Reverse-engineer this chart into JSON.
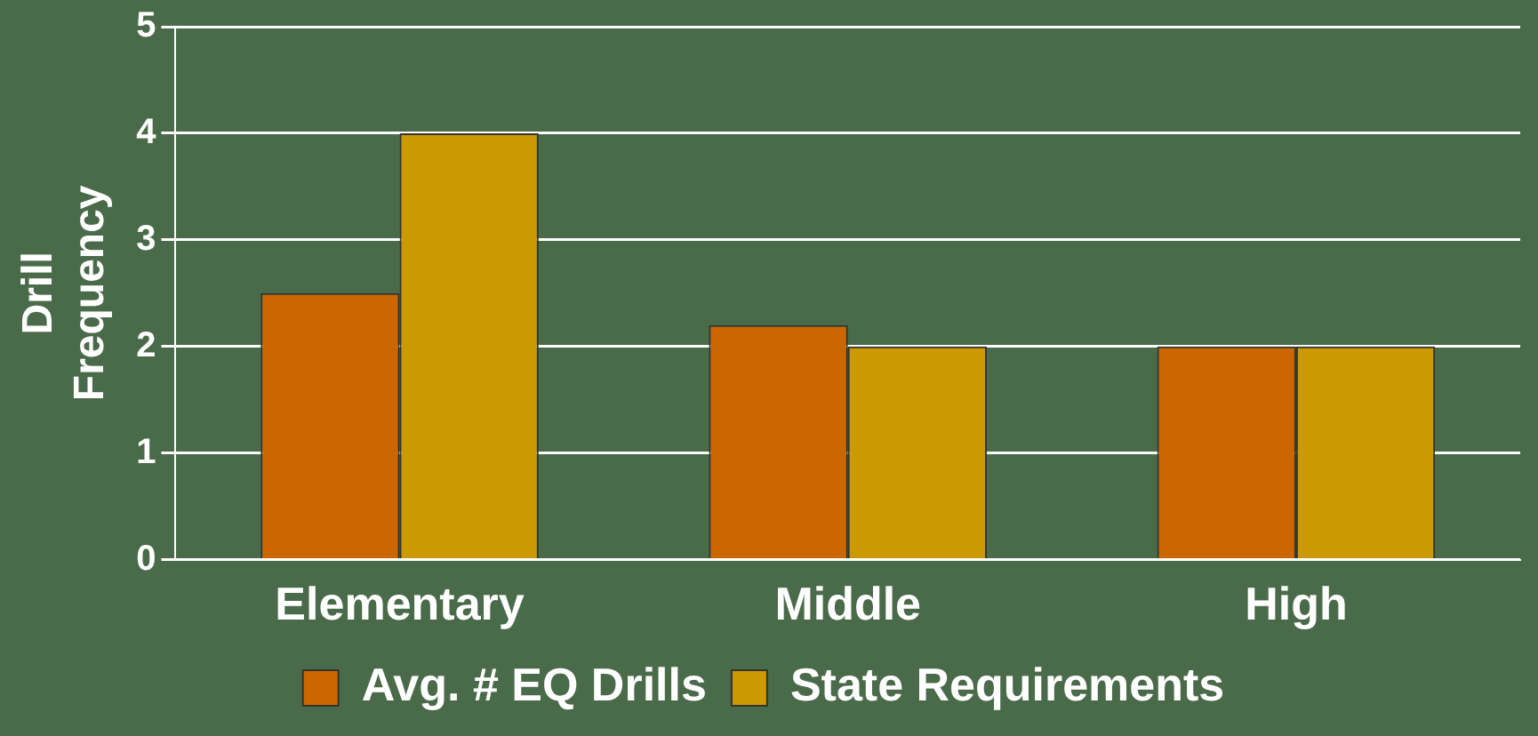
{
  "chart_data": {
    "type": "bar",
    "ylabel": "Drill\nFrequency",
    "categories": [
      "Elementary",
      "Middle",
      "High"
    ],
    "series": [
      {
        "name": "Avg. # EQ Drills",
        "color": "#cc6600",
        "values": [
          2.5,
          2.2,
          2
        ]
      },
      {
        "name": "State Requirements",
        "color": "#cc9900",
        "values": [
          4,
          2,
          2
        ]
      }
    ],
    "ylim": [
      0,
      5
    ],
    "yticks": [
      0,
      1,
      2,
      3,
      4,
      5
    ],
    "grid": "y",
    "legend": "bottom"
  }
}
